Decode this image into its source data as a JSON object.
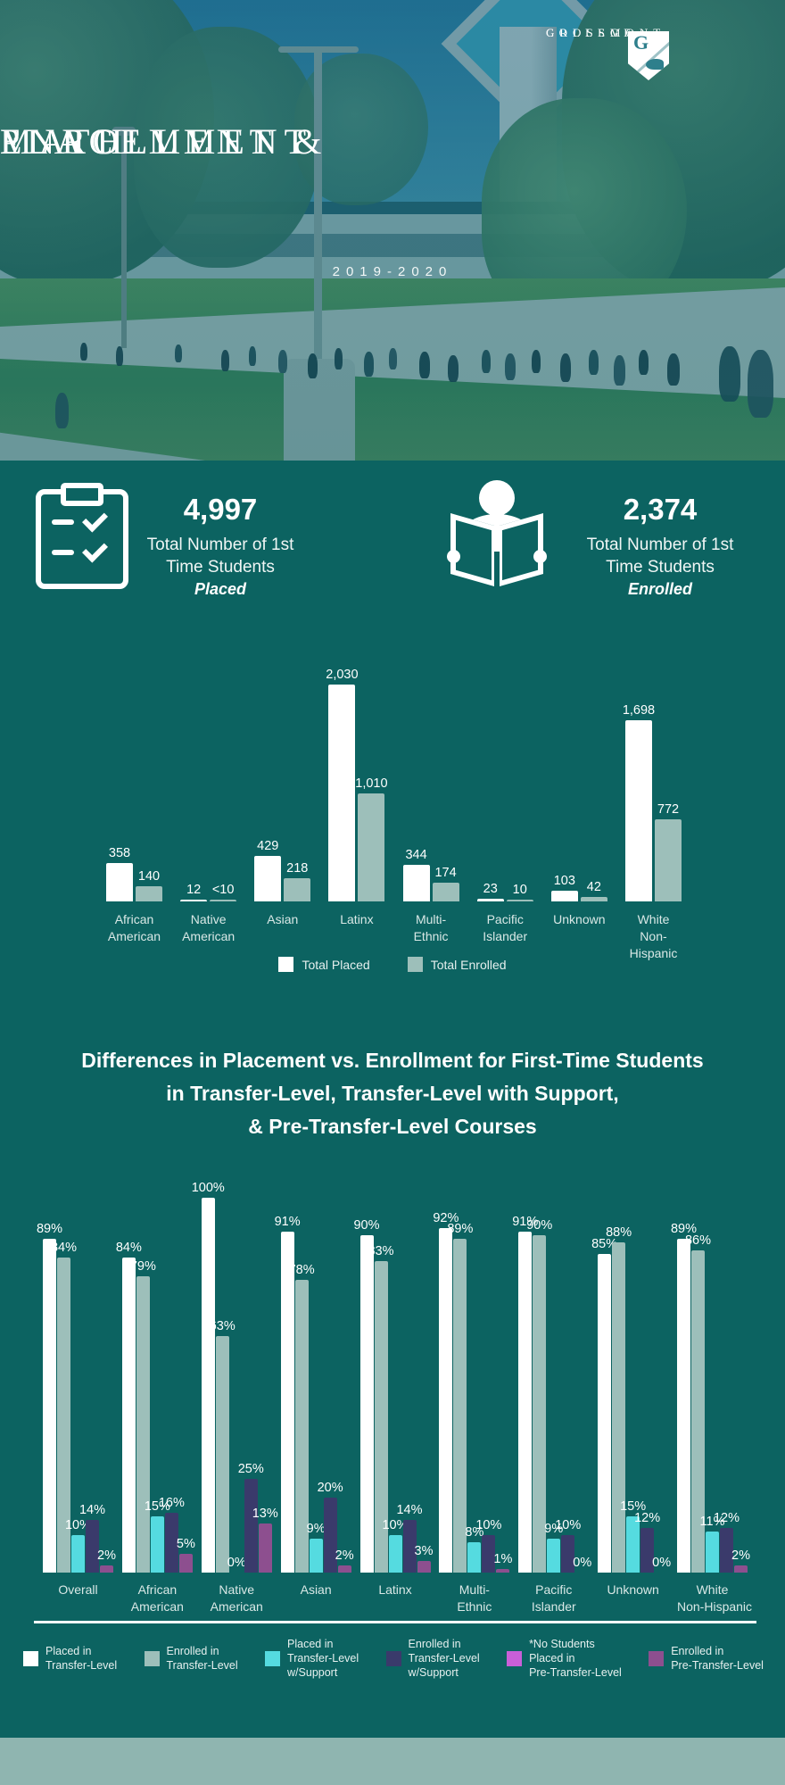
{
  "colors": {
    "background": "#0c6361",
    "footer_band": "#8fb5b0",
    "placed_bar": "#ffffff",
    "enrolled_bar": "#9dbfba",
    "placed_support_bar": "#55dbe0",
    "enrolled_support_bar": "#3a3a6b",
    "no_students_pre_transfer": "#c95fd8",
    "enrolled_pre_transfer_bar": "#8d4f8f"
  },
  "hero": {
    "brand": {
      "line1": "GROSSMONT",
      "line2": "COLLEGE",
      "shield_letter": "G"
    },
    "title_lines": [
      "MATH",
      "PLACEMENT &",
      "ENROLLMENT"
    ],
    "subtitle": "2019-2020"
  },
  "stats": [
    {
      "icon": "clipboard-checklist-icon",
      "value": "4,997",
      "caption_line1": "Total Number of 1st",
      "caption_line2": "Time Students",
      "emphasis": "Placed"
    },
    {
      "icon": "person-reading-book-icon",
      "value": "2,374",
      "caption_line1": "Total Number of 1st",
      "caption_line2": "Time Students",
      "emphasis": "Enrolled"
    }
  ],
  "chart_data": [
    {
      "type": "bar",
      "name": "total-placed-vs-enrolled-by-ethnicity",
      "categories": [
        "African American",
        "Native American",
        "Asian",
        "Latinx",
        "Multi-Ethnic",
        "Pacific Islander",
        "Unknown",
        "White Non-Hispanic"
      ],
      "category_label_lines": [
        [
          "African",
          "American"
        ],
        [
          "Native",
          "American"
        ],
        [
          "Asian"
        ],
        [
          "Latinx"
        ],
        [
          "Multi-",
          "Ethnic"
        ],
        [
          "Pacific",
          "Islander"
        ],
        [
          "Unknown"
        ],
        [
          "White",
          "Non-",
          "Hispanic"
        ]
      ],
      "series": [
        {
          "name": "Total Placed",
          "color": "#ffffff",
          "values": [
            358,
            12,
            429,
            2030,
            344,
            23,
            103,
            1698
          ],
          "value_labels": [
            "358",
            "12",
            "429",
            "2,030",
            "344",
            "23",
            "103",
            "1,698"
          ]
        },
        {
          "name": "Total Enrolled",
          "color": "#9dbfba",
          "values": [
            140,
            8,
            218,
            1010,
            174,
            10,
            42,
            772
          ],
          "value_labels": [
            "140",
            "<10",
            "218",
            "1,010",
            "174",
            "10",
            "42",
            "772"
          ]
        }
      ],
      "ylim": [
        0,
        2030
      ],
      "grid": false,
      "legend_position": "bottom"
    },
    {
      "type": "bar",
      "name": "placement-vs-enrollment-by-course-level",
      "title_lines": [
        "Differences in Placement vs. Enrollment for First-Time Students",
        "in Transfer-Level, Transfer-Level with Support,",
        "& Pre-Transfer-Level Courses"
      ],
      "categories": [
        "Overall",
        "African American",
        "Native American",
        "Asian",
        "Latinx",
        "Multi-Ethnic",
        "Pacific Islander",
        "Unknown",
        "White Non-Hispanic"
      ],
      "category_label_lines": [
        [
          "Overall"
        ],
        [
          "African",
          "American"
        ],
        [
          "Native",
          "American"
        ],
        [
          "Asian"
        ],
        [
          "Latinx"
        ],
        [
          "Multi-",
          "Ethnic"
        ],
        [
          "Pacific",
          "Islander"
        ],
        [
          "Unknown"
        ],
        [
          "White",
          "Non-Hispanic"
        ]
      ],
      "unit": "%",
      "series": [
        {
          "name": "Placed in Transfer-Level",
          "legend_lines": [
            "Placed in",
            "Transfer-Level"
          ],
          "color": "#ffffff",
          "values": [
            89,
            84,
            100,
            91,
            90,
            92,
            91,
            85,
            89
          ]
        },
        {
          "name": "Enrolled in Transfer-Level",
          "legend_lines": [
            "Enrolled in",
            "Transfer-Level"
          ],
          "color": "#9dbfba",
          "values": [
            84,
            79,
            63,
            78,
            83,
            89,
            90,
            88,
            86
          ]
        },
        {
          "name": "Placed in Transfer-Level w/Support",
          "legend_lines": [
            "Placed in",
            "Transfer-Level",
            "w/Support"
          ],
          "color": "#55dbe0",
          "values": [
            10,
            15,
            0,
            9,
            10,
            8,
            9,
            15,
            11
          ]
        },
        {
          "name": "Enrolled in Transfer-Level w/Support",
          "legend_lines": [
            "Enrolled in",
            "Transfer-Level",
            "w/Support"
          ],
          "color": "#3a3a6b",
          "values": [
            14,
            16,
            25,
            20,
            14,
            10,
            10,
            12,
            12
          ]
        },
        {
          "name": "*No Students Placed in Pre-Transfer-Level",
          "legend_lines": [
            "*No Students",
            "Placed in",
            "Pre-Transfer-Level"
          ],
          "color": "#c95fd8",
          "values": [
            0,
            0,
            0,
            0,
            0,
            0,
            0,
            0,
            0
          ],
          "bars_hidden": true
        },
        {
          "name": "Enrolled in Pre-Transfer-Level",
          "legend_lines": [
            "Enrolled in",
            "Pre-Transfer-Level"
          ],
          "color": "#8d4f8f",
          "values": [
            2,
            5,
            13,
            2,
            3,
            1,
            0,
            0,
            2
          ]
        }
      ],
      "ylim": [
        0,
        100
      ],
      "grid": false,
      "legend_position": "bottom"
    }
  ]
}
